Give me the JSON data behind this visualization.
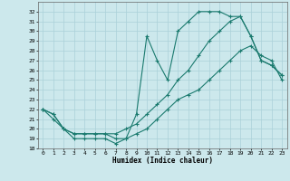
{
  "title": "",
  "xlabel": "Humidex (Indice chaleur)",
  "bg_color": "#cce8ec",
  "grid_color": "#aad0d8",
  "line_color": "#1a7a6e",
  "xlim": [
    -0.5,
    23.5
  ],
  "ylim": [
    18,
    33
  ],
  "yticks": [
    18,
    19,
    20,
    21,
    22,
    23,
    24,
    25,
    26,
    27,
    28,
    29,
    30,
    31,
    32
  ],
  "xticks": [
    0,
    1,
    2,
    3,
    4,
    5,
    6,
    7,
    8,
    9,
    10,
    11,
    12,
    13,
    14,
    15,
    16,
    17,
    18,
    19,
    20,
    21,
    22,
    23
  ],
  "series1_x": [
    0,
    1,
    2,
    3,
    4,
    5,
    6,
    7,
    8,
    9,
    10,
    11,
    12,
    13,
    14,
    15,
    16,
    17,
    18,
    19,
    20,
    21,
    22,
    23
  ],
  "series1_y": [
    22,
    21,
    20,
    19,
    19,
    19,
    19,
    18.5,
    19,
    21.5,
    29.5,
    27,
    25,
    30,
    31,
    32,
    32,
    32,
    31.5,
    31.5,
    29.5,
    27,
    26.5,
    25.5
  ],
  "series2_x": [
    0,
    1,
    2,
    3,
    4,
    5,
    6,
    7,
    8,
    9,
    10,
    11,
    12,
    13,
    14,
    15,
    16,
    17,
    18,
    19,
    20,
    21,
    22,
    23
  ],
  "series2_y": [
    22,
    21.5,
    20,
    19.5,
    19.5,
    19.5,
    19.5,
    19.5,
    20,
    20.5,
    21.5,
    22.5,
    23.5,
    25,
    26,
    27.5,
    29,
    30,
    31,
    31.5,
    29.5,
    27,
    26.5,
    25.5
  ],
  "series3_x": [
    0,
    1,
    2,
    3,
    4,
    5,
    6,
    7,
    8,
    9,
    10,
    11,
    12,
    13,
    14,
    15,
    16,
    17,
    18,
    19,
    20,
    21,
    22,
    23
  ],
  "series3_y": [
    22,
    21.5,
    20,
    19.5,
    19.5,
    19.5,
    19.5,
    19,
    19,
    19.5,
    20,
    21,
    22,
    23,
    23.5,
    24,
    25,
    26,
    27,
    28,
    28.5,
    27.5,
    27,
    25
  ]
}
